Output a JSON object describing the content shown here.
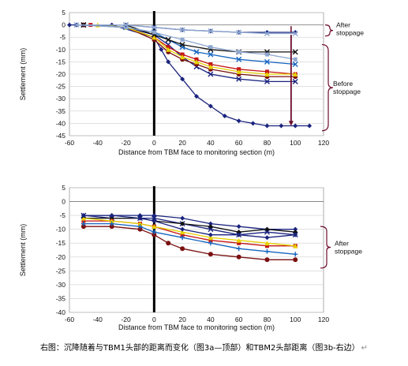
{
  "caption": "右图：沉降随着与TBM1头部的距离而变化（图3a—顶部）和TBM2头部距离（图3b-右边）",
  "caption_mark": "↵",
  "chart_data": [
    {
      "type": "line",
      "panel": "3a (top)",
      "xlabel": "Distance from TBM face to monitoring section (m)",
      "ylabel": "Settlement (mm)",
      "xlim": [
        -60,
        120
      ],
      "ylim": [
        -45,
        5
      ],
      "xticks": [
        -60,
        -40,
        -20,
        0,
        20,
        40,
        60,
        80,
        100,
        120
      ],
      "yticks": [
        5,
        0,
        -5,
        -10,
        -15,
        -20,
        -25,
        -30,
        -35,
        -40,
        -45
      ],
      "grid": true,
      "annotations": [
        "After\nstoppage",
        "Before\nstoppage"
      ],
      "series": [
        {
          "color": "#1a237e",
          "marker": "diamond",
          "x": [
            -60,
            -30,
            0,
            5,
            10,
            20,
            30,
            40,
            50,
            60,
            70,
            80,
            90,
            100,
            110
          ],
          "y": [
            0,
            0,
            -5,
            -10,
            -15,
            -22,
            -29,
            -33,
            -37,
            -39,
            -40,
            -41,
            -41,
            -41,
            -41
          ]
        },
        {
          "color": "#1a237e",
          "marker": "x",
          "x": [
            -50,
            -20,
            0,
            10,
            20,
            30,
            40,
            60,
            80,
            100
          ],
          "y": [
            0,
            -1,
            -4,
            -8,
            -13,
            -17,
            -20,
            -22,
            -23,
            -23
          ]
        },
        {
          "color": "#7a1010",
          "marker": "circle",
          "x": [
            -50,
            -20,
            0,
            10,
            20,
            30,
            40,
            60,
            80,
            100
          ],
          "y": [
            0,
            -1,
            -6,
            -11,
            -14,
            -16,
            -18,
            -20,
            -21,
            -21
          ]
        },
        {
          "color": "#c41515",
          "marker": "square",
          "x": [
            -45,
            -20,
            0,
            10,
            20,
            30,
            40,
            60,
            80,
            100
          ],
          "y": [
            0,
            -1,
            -5,
            -9,
            -12,
            -14,
            -16,
            -18,
            -19,
            -20
          ]
        },
        {
          "color": "#e6d200",
          "marker": "triangle",
          "x": [
            -40,
            -20,
            0,
            10,
            20,
            30,
            40,
            60,
            80,
            100
          ],
          "y": [
            0,
            -1,
            -5,
            -10,
            -13,
            -15,
            -17,
            -19,
            -20,
            -20
          ]
        },
        {
          "color": "#1565c0",
          "marker": "x",
          "x": [
            -50,
            -20,
            0,
            10,
            20,
            30,
            40,
            60,
            80,
            100
          ],
          "y": [
            0,
            -1,
            -3,
            -6,
            -9,
            -11,
            -12,
            -14,
            -15,
            -16
          ]
        },
        {
          "color": "#111111",
          "marker": "x",
          "x": [
            -50,
            -20,
            0,
            10,
            20,
            40,
            60,
            80,
            100
          ],
          "y": [
            0,
            0,
            -4,
            -6,
            -8,
            -10,
            -11,
            -11,
            -11
          ]
        },
        {
          "color": "#8fa8d0",
          "marker": "square",
          "x": [
            -55,
            -20,
            0,
            20,
            40,
            60,
            80,
            100
          ],
          "y": [
            0,
            -1,
            -3,
            -6,
            -9,
            -11,
            -12,
            -14
          ]
        },
        {
          "color": "#1a237e",
          "marker": "diamond",
          "x": [
            -55,
            -20,
            0,
            20,
            40,
            60,
            80,
            100
          ],
          "y": [
            0,
            0,
            -1,
            -2,
            -2.5,
            -3,
            -3,
            -3
          ]
        },
        {
          "color": "#8fa8d0",
          "marker": "x",
          "x": [
            -55,
            -20,
            0,
            20,
            40,
            60,
            80,
            100
          ],
          "y": [
            0,
            0,
            -1,
            -2,
            -2.5,
            -3,
            -3.5,
            -3.5
          ]
        }
      ]
    },
    {
      "type": "line",
      "panel": "3b",
      "xlabel": "Distance from TBM face to monitoring section (m)",
      "ylabel": "Settlement (mm)",
      "xlim": [
        -60,
        120
      ],
      "ylim": [
        -40,
        5
      ],
      "xticks": [
        -60,
        -40,
        -20,
        0,
        20,
        40,
        60,
        80,
        100,
        120
      ],
      "yticks": [
        5,
        0,
        -5,
        -10,
        -15,
        -20,
        -25,
        -30,
        -35,
        -40
      ],
      "grid": true,
      "annotations": [
        "After\nstoppage"
      ],
      "series": [
        {
          "color": "#1a237e",
          "marker": "diamond",
          "x": [
            -50,
            -30,
            -10,
            0,
            20,
            40,
            60,
            80,
            100
          ],
          "y": [
            -5,
            -5,
            -5,
            -5,
            -6,
            -8,
            -9,
            -10,
            -10
          ]
        },
        {
          "color": "#1a237e",
          "marker": "x",
          "x": [
            -50,
            -30,
            -10,
            0,
            20,
            40,
            60,
            80,
            100
          ],
          "y": [
            -5,
            -6,
            -6,
            -6,
            -8,
            -10,
            -12,
            -11,
            -12
          ]
        },
        {
          "color": "#111111",
          "marker": "diamond",
          "x": [
            -50,
            -30,
            -10,
            0,
            20,
            40,
            60,
            80,
            100
          ],
          "y": [
            -6,
            -6,
            -6,
            -7,
            -8,
            -9,
            -11,
            -10,
            -11
          ]
        },
        {
          "color": "#c41515",
          "marker": "square",
          "x": [
            -50,
            -30,
            -10,
            0,
            20,
            40,
            60,
            80,
            100
          ],
          "y": [
            -7,
            -7,
            -8,
            -9,
            -12,
            -14,
            -15,
            -16,
            -16
          ]
        },
        {
          "color": "#e6d200",
          "marker": "triangle",
          "x": [
            -50,
            -30,
            -10,
            0,
            20,
            40,
            60,
            80,
            100
          ],
          "y": [
            -6,
            -7,
            -8,
            -9,
            -11,
            -13,
            -14,
            -15,
            -16
          ]
        },
        {
          "color": "#7a1010",
          "marker": "circle",
          "x": [
            -50,
            -30,
            -10,
            0,
            10,
            20,
            40,
            60,
            80,
            100
          ],
          "y": [
            -9,
            -9,
            -10,
            -12,
            -15,
            -17,
            -19,
            -20,
            -21,
            -21
          ]
        },
        {
          "color": "#1565c0",
          "marker": "plus",
          "x": [
            -50,
            -30,
            -10,
            0,
            20,
            40,
            60,
            80,
            100
          ],
          "y": [
            -8,
            -8,
            -9,
            -11,
            -13,
            -15,
            -17,
            -18,
            -19
          ]
        },
        {
          "color": "#1a237e",
          "marker": "diamond",
          "x": [
            -50,
            -30,
            -10,
            0,
            20,
            40,
            60,
            80,
            100
          ],
          "y": [
            -5,
            -5,
            -6,
            -7,
            -10,
            -12,
            -12,
            -13,
            -12
          ]
        }
      ]
    }
  ]
}
